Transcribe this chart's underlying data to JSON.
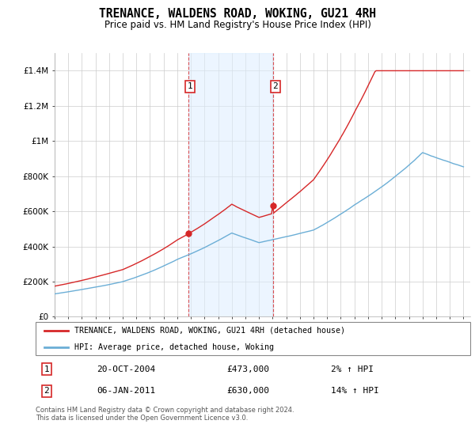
{
  "title": "TRENANCE, WALDENS ROAD, WOKING, GU21 4RH",
  "subtitle": "Price paid vs. HM Land Registry's House Price Index (HPI)",
  "legend_line1": "TRENANCE, WALDENS ROAD, WOKING, GU21 4RH (detached house)",
  "legend_line2": "HPI: Average price, detached house, Woking",
  "transaction1_date": "20-OCT-2004",
  "transaction1_price": "£473,000",
  "transaction1_hpi": "2% ↑ HPI",
  "transaction1_year": 2004.8,
  "transaction1_value": 473000,
  "transaction2_date": "06-JAN-2011",
  "transaction2_price": "£630,000",
  "transaction2_hpi": "14% ↑ HPI",
  "transaction2_year": 2011.04,
  "transaction2_value": 630000,
  "footer": "Contains HM Land Registry data © Crown copyright and database right 2024.\nThis data is licensed under the Open Government Licence v3.0.",
  "hpi_color": "#6baed6",
  "price_color": "#d62728",
  "shading_color": "#ddeeff",
  "shading_alpha": 0.55,
  "ylim_max": 1500000,
  "background_color": "#ffffff",
  "grid_color": "#cccccc",
  "start_year": 1995,
  "end_year": 2025
}
